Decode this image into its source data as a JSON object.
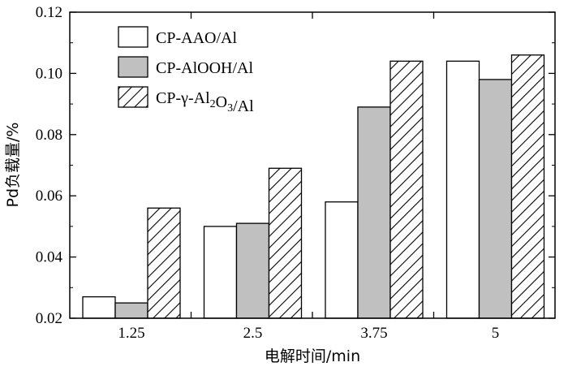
{
  "chart_data": {
    "type": "bar",
    "title": "",
    "xlabel": "电解时间/min",
    "ylabel": "Pd负载量/%",
    "categories": [
      "1.25",
      "2.5",
      "3.75",
      "5"
    ],
    "ylim": [
      0.02,
      0.12
    ],
    "yticks": [
      "0.02",
      "0.04",
      "0.06",
      "0.08",
      "0.10",
      "0.12"
    ],
    "grid": false,
    "legend_position": "top-left",
    "series": [
      {
        "name": "CP-AAO/Al",
        "fill": "#ffffff",
        "pattern": "none",
        "values": [
          0.027,
          0.05,
          0.058,
          0.104
        ]
      },
      {
        "name": "CP-AlOOH/Al",
        "fill": "#c0c0c0",
        "pattern": "none",
        "values": [
          0.025,
          0.051,
          0.089,
          0.098
        ]
      },
      {
        "name": "CP-γ-Al2O3/Al",
        "fill": "#ffffff",
        "pattern": "hatch",
        "values": [
          0.056,
          0.069,
          0.104,
          0.106
        ]
      }
    ]
  }
}
